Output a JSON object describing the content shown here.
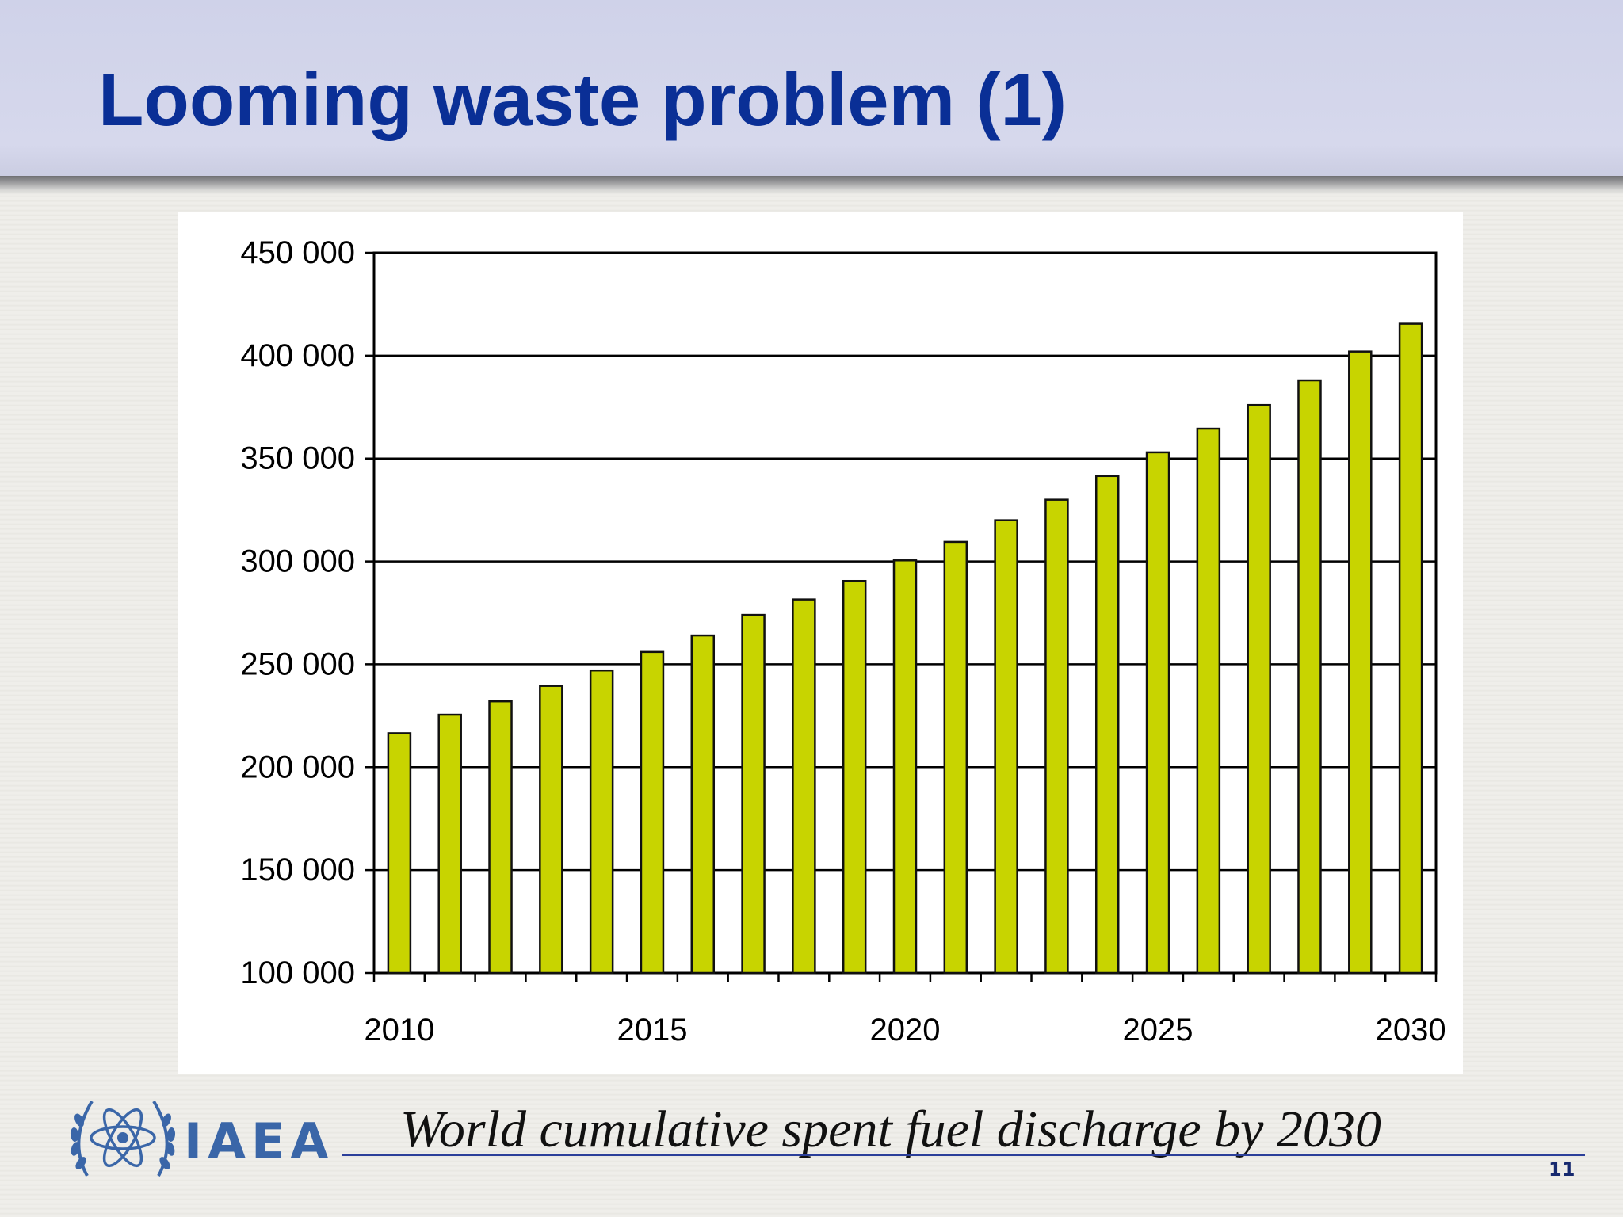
{
  "slide": {
    "title": "Looming waste problem (1)",
    "caption": "World cumulative spent fuel discharge by 2030",
    "page_number": "11"
  },
  "logo": {
    "text": "IAEA",
    "icon": "iaea-atom-laurel-emblem",
    "color": "#3a66a8"
  },
  "colors": {
    "title": "#0a2f96",
    "bar_fill": "#c8d400",
    "bar_stroke": "#111111",
    "header_band": "#d3d6eb"
  },
  "chart_data": {
    "type": "bar",
    "title": "",
    "xlabel": "",
    "ylabel": "",
    "ylim": [
      100000,
      450000
    ],
    "yticks": [
      100000,
      150000,
      200000,
      250000,
      300000,
      350000,
      400000,
      450000
    ],
    "ytick_labels": [
      "100 000",
      "150 000",
      "200 000",
      "250 000",
      "300 000",
      "350 000",
      "400 000",
      "450 000"
    ],
    "xtick_labels": [
      "2010",
      "2015",
      "2020",
      "2025",
      "2030"
    ],
    "grid": "horizontal",
    "legend": "none",
    "categories": [
      "2010",
      "2011",
      "2012",
      "2013",
      "2014",
      "2015",
      "2016",
      "2017",
      "2018",
      "2019",
      "2020",
      "2021",
      "2022",
      "2023",
      "2024",
      "2025",
      "2026",
      "2027",
      "2028",
      "2029",
      "2030"
    ],
    "values": [
      216500,
      225500,
      232000,
      239500,
      247000,
      256000,
      264000,
      274000,
      281500,
      290500,
      300500,
      309500,
      320000,
      330000,
      341500,
      353000,
      364500,
      376000,
      388000,
      402000,
      415500
    ]
  }
}
